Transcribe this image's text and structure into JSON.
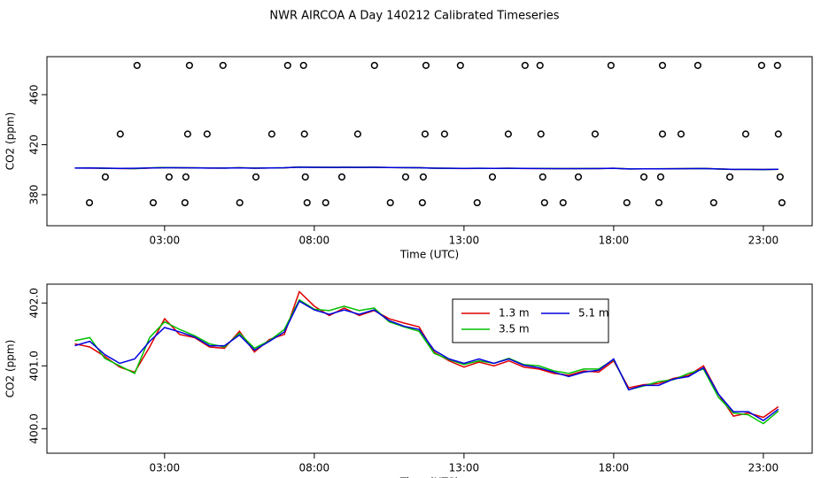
{
  "title": "NWR AIRCOA A  Day 140212  Calibrated Timeseries",
  "chart_data": [
    {
      "type": "scatter",
      "xlabel": "Time (UTC)",
      "ylabel": "CO2 (ppm)",
      "xlim": [
        -0.93,
        24.63
      ],
      "ylim": [
        355.2,
        490.4
      ],
      "xticks": [
        {
          "value": 3,
          "label": "03:00"
        },
        {
          "value": 8,
          "label": "08:00"
        },
        {
          "value": 13,
          "label": "13:00"
        },
        {
          "value": 18,
          "label": "18:00"
        },
        {
          "value": 23,
          "label": "23:00"
        }
      ],
      "yticks": [
        380,
        420,
        460
      ],
      "color": "#000000",
      "x": [
        2.08,
        3.83,
        4.95,
        7.11,
        7.64,
        10.01,
        11.73,
        12.88,
        15.04,
        15.54,
        17.91,
        19.63,
        20.81,
        22.94,
        23.47,
        1.52,
        3.77,
        4.42,
        6.58,
        7.67,
        9.45,
        11.7,
        12.35,
        14.48,
        15.57,
        17.38,
        19.63,
        20.25,
        22.41,
        23.5,
        1.02,
        3.15,
        3.71,
        6.05,
        7.7,
        8.92,
        11.05,
        11.64,
        13.95,
        15.63,
        16.82,
        19.01,
        19.57,
        21.88,
        23.56,
        0.49,
        2.62,
        3.68,
        5.51,
        7.76,
        8.38,
        10.54,
        11.61,
        13.44,
        15.69,
        16.31,
        18.44,
        19.51,
        21.34,
        23.62
      ],
      "values": [
        483.4,
        483.4,
        483.4,
        483.4,
        483.4,
        483.4,
        483.4,
        483.4,
        483.4,
        483.4,
        483.4,
        483.4,
        483.4,
        483.4,
        483.4,
        428.5,
        428.5,
        428.5,
        428.5,
        428.5,
        428.5,
        428.5,
        428.5,
        428.5,
        428.5,
        428.5,
        428.5,
        428.5,
        428.5,
        428.5,
        394.2,
        394.2,
        394.2,
        394.2,
        394.2,
        394.2,
        394.2,
        394.2,
        394.2,
        394.2,
        394.2,
        394.2,
        394.2,
        394.2,
        394.2,
        373.6,
        373.6,
        373.6,
        373.6,
        373.6,
        373.6,
        373.6,
        373.6,
        373.6,
        373.6,
        373.6,
        373.6,
        373.6,
        373.6,
        373.6
      ]
    },
    {
      "type": "line",
      "xlabel": "Time (UTC)",
      "ylabel": "CO2 (ppm)",
      "xlim": [
        -0.93,
        24.63
      ],
      "ylim": [
        399.61,
        402.3
      ],
      "xticks": [
        {
          "value": 3,
          "label": "03:00"
        },
        {
          "value": 8,
          "label": "08:00"
        },
        {
          "value": 13,
          "label": "13:00"
        },
        {
          "value": 18,
          "label": "18:00"
        },
        {
          "value": 23,
          "label": "23:00"
        }
      ],
      "yticks": [
        {
          "value": 400,
          "label": "400.0"
        },
        {
          "value": 401,
          "label": "401.0"
        },
        {
          "value": 402,
          "label": "402.0"
        }
      ],
      "x": [
        0,
        0.5,
        1,
        1.5,
        2,
        2.5,
        3,
        3.5,
        4,
        4.5,
        5,
        5.5,
        6,
        6.5,
        7,
        7.5,
        8,
        8.5,
        9,
        9.5,
        10,
        10.5,
        11,
        11.5,
        12,
        12.5,
        13,
        13.5,
        14,
        14.5,
        15,
        15.5,
        16,
        16.5,
        17,
        17.5,
        18,
        18.5,
        19,
        19.5,
        20,
        20.5,
        21,
        21.5,
        22,
        22.5,
        23,
        23.5
      ],
      "series": [
        {
          "name": "1.3 m",
          "color": "#e00000",
          "values": [
            401.35,
            401.3,
            401.15,
            400.98,
            400.9,
            401.3,
            401.75,
            401.5,
            401.45,
            401.3,
            401.28,
            401.55,
            401.22,
            401.42,
            401.5,
            402.18,
            401.95,
            401.8,
            401.92,
            401.8,
            401.88,
            401.75,
            401.68,
            401.62,
            401.22,
            401.08,
            400.98,
            401.06,
            401.0,
            401.08,
            400.98,
            400.95,
            400.88,
            400.85,
            400.92,
            400.9,
            401.08,
            400.65,
            400.7,
            400.72,
            400.8,
            400.85,
            401.0,
            400.55,
            400.2,
            400.25,
            400.18,
            400.35
          ]
        },
        {
          "name": "3.5 m",
          "color": "#00c000",
          "values": [
            401.4,
            401.45,
            401.12,
            401.0,
            400.88,
            401.45,
            401.7,
            401.58,
            401.48,
            401.35,
            401.3,
            401.52,
            401.28,
            401.4,
            401.58,
            402.05,
            401.9,
            401.88,
            401.95,
            401.88,
            401.92,
            401.7,
            401.62,
            401.55,
            401.2,
            401.1,
            401.02,
            401.08,
            401.04,
            401.12,
            401.02,
            401.0,
            400.92,
            400.88,
            400.95,
            400.95,
            401.1,
            400.62,
            400.68,
            400.75,
            400.78,
            400.88,
            400.95,
            400.5,
            400.25,
            400.22,
            400.08,
            400.28
          ]
        },
        {
          "name": "5.1 m",
          "color": "#0000e0",
          "values": [
            401.32,
            401.39,
            401.18,
            401.04,
            401.11,
            401.39,
            401.61,
            401.54,
            401.46,
            401.32,
            401.32,
            401.49,
            401.25,
            401.39,
            401.54,
            402.03,
            401.89,
            401.82,
            401.89,
            401.82,
            401.89,
            401.72,
            401.63,
            401.58,
            401.25,
            401.11,
            401.04,
            401.11,
            401.04,
            401.11,
            401.01,
            400.97,
            400.9,
            400.83,
            400.9,
            400.93,
            401.11,
            400.62,
            400.69,
            400.69,
            400.79,
            400.83,
            400.97,
            400.55,
            400.27,
            400.27,
            400.13,
            400.31
          ]
        }
      ]
    }
  ]
}
